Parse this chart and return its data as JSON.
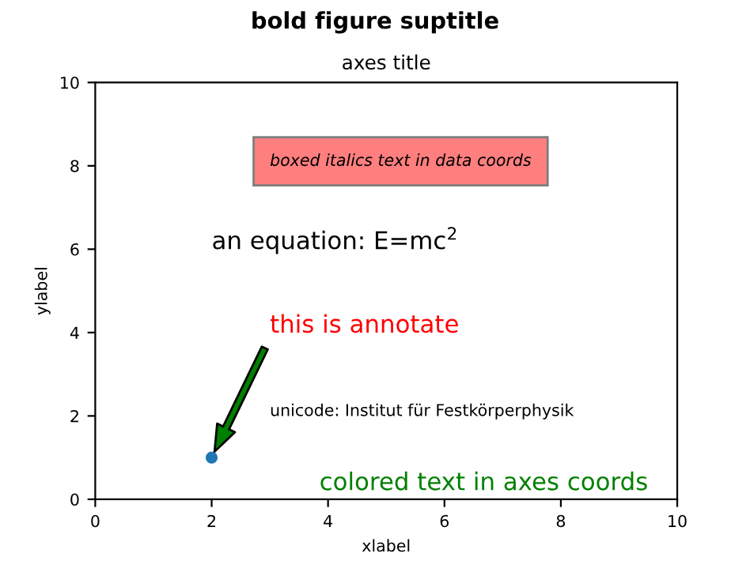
{
  "chart_data": {
    "type": "scatter",
    "title": "bold figure suptitle",
    "subtitle": "axes title",
    "xlabel": "xlabel",
    "ylabel": "ylabel",
    "x": [
      2
    ],
    "series": [
      {
        "color": "#1f77b4",
        "values": [
          1
        ]
      }
    ],
    "marker": "circle",
    "grid": false,
    "legend": false,
    "xlim": [
      0,
      10
    ],
    "ylim": [
      0,
      10
    ],
    "xticks": [
      0,
      2,
      4,
      6,
      8,
      10
    ],
    "yticks": [
      0,
      2,
      4,
      6,
      8,
      10
    ],
    "annotations": [
      "boxed italics text in data coords",
      "an equation: E=mc$^{2}$",
      "unicode: Institut für Festkörperphysik",
      "colored text in axes coords",
      "this is annotate"
    ]
  }
}
